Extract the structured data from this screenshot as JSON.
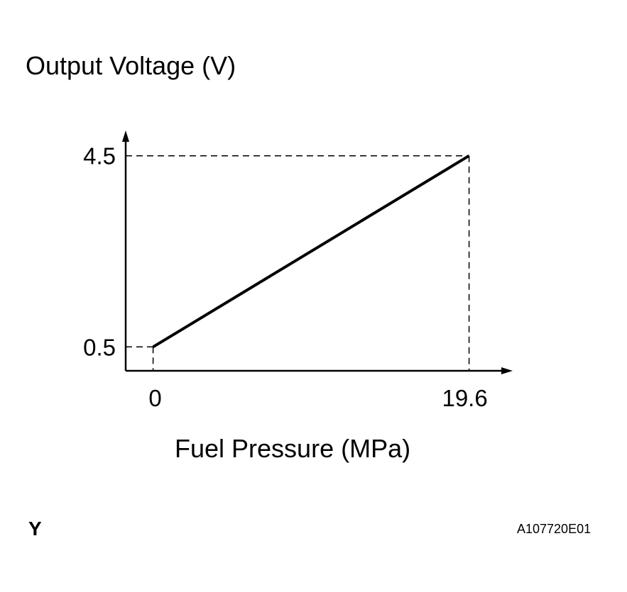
{
  "chart_data": {
    "type": "line",
    "title": "Output Voltage (V)",
    "xlabel": "Fuel Pressure (MPa)",
    "ylabel": "Output Voltage (V)",
    "series": [
      {
        "name": "Output Voltage",
        "x": [
          0,
          19.6
        ],
        "y": [
          0.5,
          4.5
        ]
      }
    ],
    "x_ticks": [
      {
        "value": 0,
        "label": "0"
      },
      {
        "value": 19.6,
        "label": "19.6"
      }
    ],
    "y_ticks": [
      {
        "value": 0.5,
        "label": "0.5"
      },
      {
        "value": 4.5,
        "label": "4.5"
      }
    ],
    "xlim": [
      -1.7,
      22.2
    ],
    "ylim": [
      0,
      5
    ],
    "grid": false,
    "color": "#000000"
  },
  "figure_letter": "Y",
  "figure_code": "A107720E01"
}
